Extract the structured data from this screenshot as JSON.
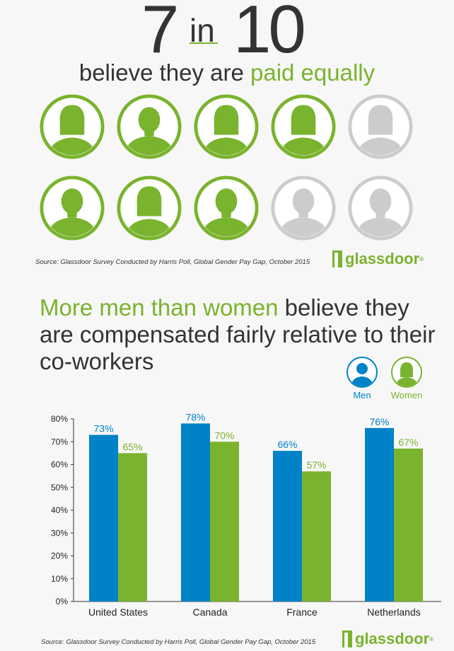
{
  "headline_top": {
    "number_left": "7",
    "connector": "in",
    "number_right": "10",
    "subtitle_plain": "believe they are ",
    "subtitle_highlight": "paid equally"
  },
  "people_grid": {
    "total": 10,
    "highlighted": 7,
    "highlight_color": "#7ab32e",
    "muted_color": "#cccccc",
    "figures": [
      "female",
      "male",
      "female",
      "female",
      "female",
      "male",
      "female",
      "male",
      "male",
      "male"
    ]
  },
  "source_top": "Source: Glassdoor Survey Conducted by Harris Poll, Global Gender Pay Gap, October 2015",
  "logo_text": "glassdoor",
  "logo_mark": "®",
  "headline2": {
    "highlight": "More men than women",
    "rest": " believe they are compensated fairly relative to their co-workers"
  },
  "legend": {
    "men": "Men",
    "women": "Women",
    "men_color": "#0082c8",
    "women_color": "#7ab32e"
  },
  "chart_data": {
    "type": "bar",
    "categories": [
      "United States",
      "Canada",
      "France",
      "Netherlands"
    ],
    "series": [
      {
        "name": "Men",
        "values": [
          73,
          78,
          66,
          76
        ],
        "color": "#0082c8",
        "labels": [
          "73%",
          "78%",
          "66%",
          "76%"
        ]
      },
      {
        "name": "Women",
        "values": [
          65,
          70,
          57,
          67
        ],
        "color": "#7ab32e",
        "labels": [
          "65%",
          "70%",
          "57%",
          "67%"
        ]
      }
    ],
    "yticks": [
      "0%",
      "10%",
      "20%",
      "30%",
      "40%",
      "50%",
      "60%",
      "70%",
      "80%"
    ],
    "ylim": [
      0,
      80
    ],
    "legend_position": "top-right",
    "grid": false
  },
  "source_bottom": "Source: Glassdoor Survey Conducted by Harris Poll, Global Gender Pay Gap, October 2015"
}
